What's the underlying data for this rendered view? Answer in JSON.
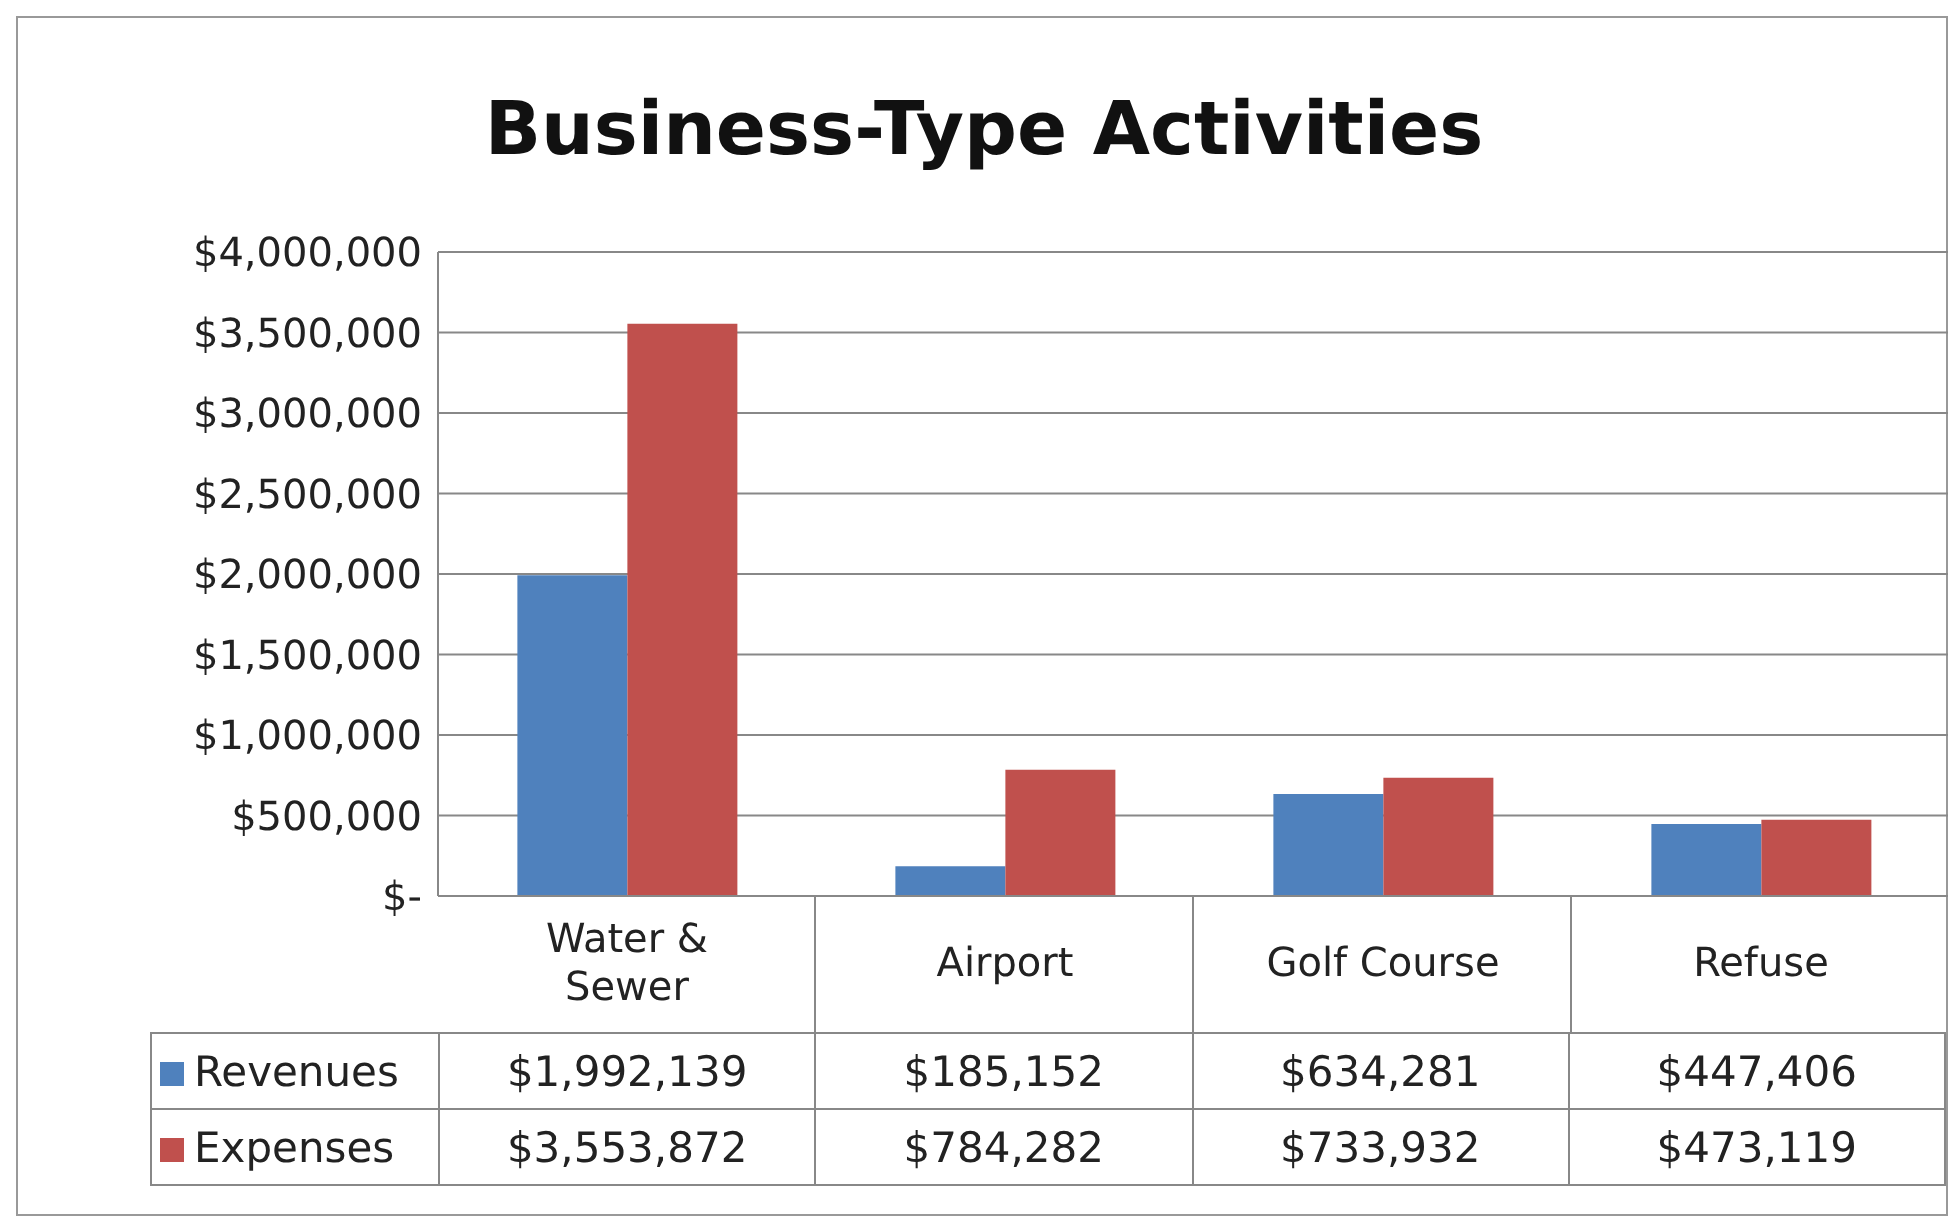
{
  "chart_data": {
    "type": "bar",
    "title": "Business-Type Activities",
    "categories": [
      "Water &\nSewer",
      "Airport",
      "Golf Course",
      "Refuse"
    ],
    "series": [
      {
        "name": "Revenues",
        "color": "#4f81bd",
        "values": [
          1992139,
          185152,
          634281,
          447406
        ],
        "value_labels": [
          "$1,992,139",
          "$185,152",
          "$634,281",
          "$447,406"
        ]
      },
      {
        "name": "Expenses",
        "color": "#c0504d",
        "values": [
          3553872,
          784282,
          733932,
          473119
        ],
        "value_labels": [
          "$3,553,872",
          "$784,282",
          "$733,932",
          "$473,119"
        ]
      }
    ],
    "ylim": [
      0,
      4000000
    ],
    "yticks": [
      {
        "value": 0,
        "label": "$-"
      },
      {
        "value": 500000,
        "label": "$500,000"
      },
      {
        "value": 1000000,
        "label": "$1,000,000"
      },
      {
        "value": 1500000,
        "label": "$1,500,000"
      },
      {
        "value": 2000000,
        "label": "$2,000,000"
      },
      {
        "value": 2500000,
        "label": "$2,500,000"
      },
      {
        "value": 3000000,
        "label": "$3,000,000"
      },
      {
        "value": 3500000,
        "label": "$3,500,000"
      },
      {
        "value": 4000000,
        "label": "$4,000,000"
      }
    ],
    "grid": "y",
    "legend": "bottom left"
  }
}
